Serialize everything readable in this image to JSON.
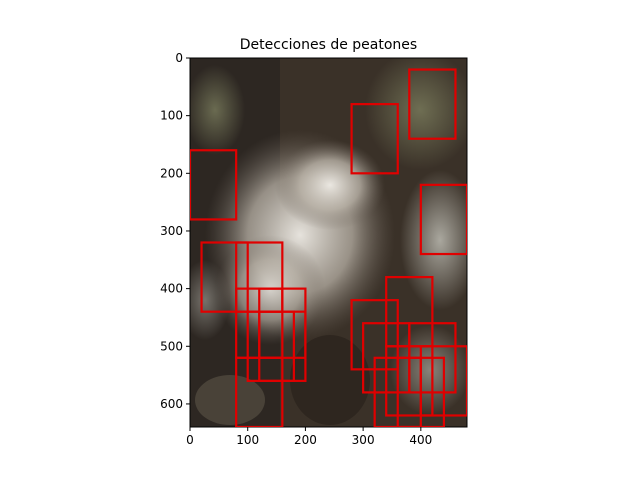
{
  "chart_data": {
    "type": "image-with-boxes",
    "title": "Detecciones de peatones",
    "image_subject": "close-up photo of a white fluffy seed head on a dark forest background",
    "image_width": 480,
    "image_height": 640,
    "xlim": [
      0,
      480
    ],
    "ylim": [
      640,
      0
    ],
    "x_ticks": [
      0,
      100,
      200,
      300,
      400
    ],
    "y_ticks": [
      0,
      100,
      200,
      300,
      400,
      500,
      600
    ],
    "box_color": "#e00000",
    "boxes": [
      {
        "x1": 380,
        "y1": 20,
        "x2": 460,
        "y2": 140
      },
      {
        "x1": 280,
        "y1": 80,
        "x2": 360,
        "y2": 200
      },
      {
        "x1": 0,
        "y1": 160,
        "x2": 80,
        "y2": 280
      },
      {
        "x1": 400,
        "y1": 220,
        "x2": 480,
        "y2": 340
      },
      {
        "x1": 20,
        "y1": 320,
        "x2": 100,
        "y2": 440
      },
      {
        "x1": 80,
        "y1": 320,
        "x2": 160,
        "y2": 440
      },
      {
        "x1": 340,
        "y1": 380,
        "x2": 420,
        "y2": 500
      },
      {
        "x1": 80,
        "y1": 400,
        "x2": 160,
        "y2": 520
      },
      {
        "x1": 120,
        "y1": 400,
        "x2": 200,
        "y2": 520
      },
      {
        "x1": 280,
        "y1": 420,
        "x2": 360,
        "y2": 540
      },
      {
        "x1": 100,
        "y1": 440,
        "x2": 180,
        "y2": 560
      },
      {
        "x1": 120,
        "y1": 440,
        "x2": 200,
        "y2": 560
      },
      {
        "x1": 300,
        "y1": 460,
        "x2": 380,
        "y2": 580
      },
      {
        "x1": 380,
        "y1": 460,
        "x2": 460,
        "y2": 580
      },
      {
        "x1": 340,
        "y1": 500,
        "x2": 420,
        "y2": 620
      },
      {
        "x1": 400,
        "y1": 500,
        "x2": 480,
        "y2": 620
      },
      {
        "x1": 80,
        "y1": 520,
        "x2": 160,
        "y2": 640
      },
      {
        "x1": 320,
        "y1": 520,
        "x2": 400,
        "y2": 640
      },
      {
        "x1": 360,
        "y1": 520,
        "x2": 440,
        "y2": 640
      }
    ]
  }
}
